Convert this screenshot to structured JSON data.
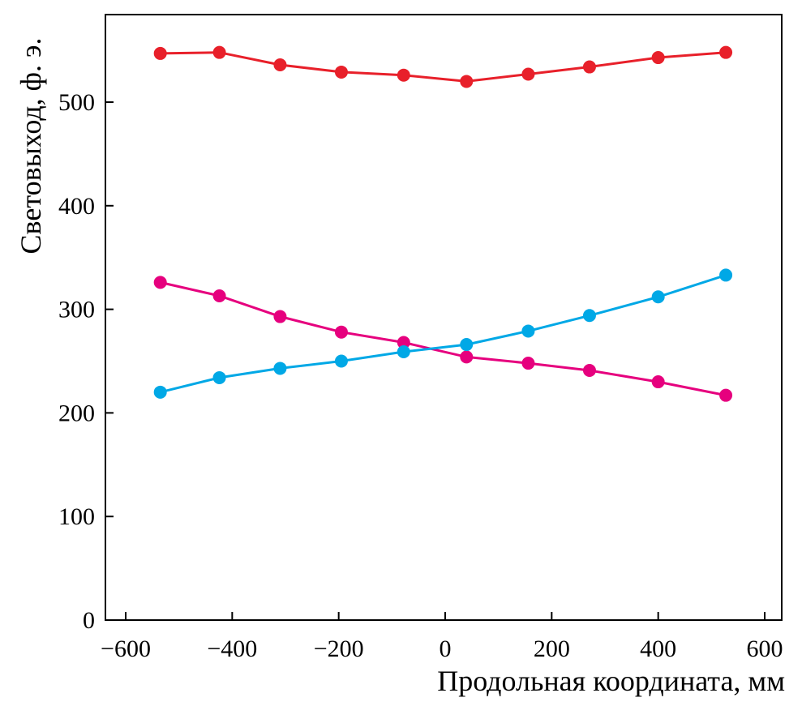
{
  "chart_data": {
    "type": "line",
    "title": "",
    "xlabel": "Продольная координата, мм",
    "ylabel": "Световыход, ф. э.",
    "xlim": [
      -650,
      650
    ],
    "ylim": [
      0,
      580
    ],
    "xticks": [
      -600,
      -400,
      -200,
      0,
      200,
      400,
      600
    ],
    "xtick_labels": [
      "−600",
      "−400",
      "−200",
      "0",
      "200",
      "400",
      "600"
    ],
    "yticks": [
      0,
      100,
      200,
      300,
      400,
      500
    ],
    "ytick_labels": [
      "0",
      "100",
      "200",
      "300",
      "400",
      "500"
    ],
    "grid": false,
    "x": [
      -535,
      -424,
      -310,
      -195,
      -78,
      40,
      156,
      271,
      400,
      527
    ],
    "series": [
      {
        "name": "red",
        "color": "#e8202a",
        "values": [
          547,
          548,
          536,
          529,
          526,
          520,
          527,
          534,
          543,
          548
        ]
      },
      {
        "name": "magenta",
        "color": "#e6007e",
        "values": [
          326,
          313,
          293,
          278,
          268,
          254,
          248,
          241,
          230,
          217
        ]
      },
      {
        "name": "cyan",
        "color": "#00a8e6",
        "values": [
          220,
          234,
          243,
          250,
          259,
          266,
          279,
          294,
          312,
          333
        ]
      }
    ]
  }
}
